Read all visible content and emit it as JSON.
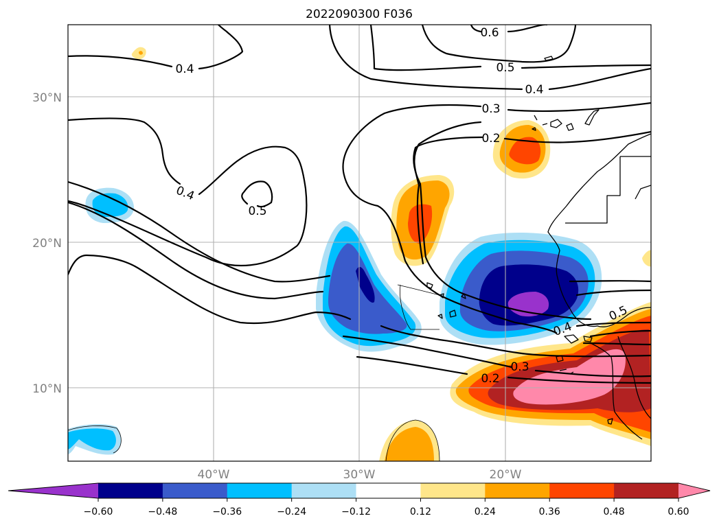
{
  "title": "2022090300 F036",
  "map": {
    "lat_ticks": [
      "10°N",
      "20°N",
      "30°N"
    ],
    "lon_ticks": [
      "40°W",
      "30°W",
      "20°W"
    ],
    "extent": {
      "lon": [
        -50,
        -10
      ],
      "lat": [
        5,
        35
      ]
    },
    "grid": true
  },
  "contour_labels": [
    "0.6",
    "0.5",
    "0.4",
    "0.4",
    "0.3",
    "0.2",
    "0.4",
    "0.5",
    "0.4",
    "0.5",
    "0.3",
    "0.2"
  ],
  "colorbar": {
    "tick_labels": [
      "−0.60",
      "−0.48",
      "−0.36",
      "−0.24",
      "−0.12",
      "0.12",
      "0.24",
      "0.36",
      "0.48",
      "0.60"
    ],
    "colors": [
      "#9932CC",
      "#00008B",
      "#3A5BCB",
      "#00BFFF",
      "#ADDFF5",
      "#FFFFFF",
      "#FFE68A",
      "#FFA500",
      "#FF4500",
      "#B22222",
      "#FF88AA"
    ],
    "extend": "both"
  }
}
